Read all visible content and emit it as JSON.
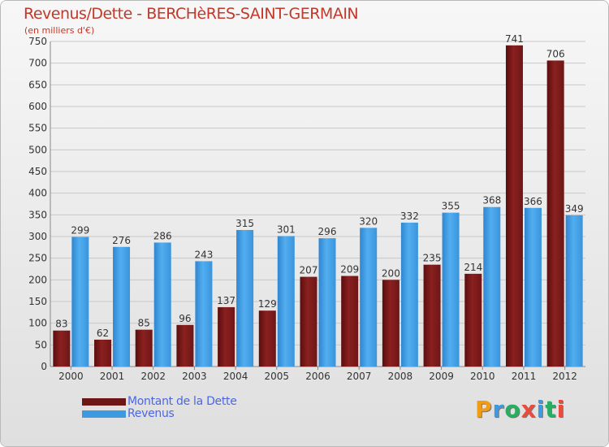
{
  "title": "Revenus/Dette - BERCHèRES-SAINT-GERMAIN",
  "subtitle": "(en milliers d'€)",
  "logo": {
    "letters": [
      "P",
      "r",
      "o",
      "x",
      "i",
      "t",
      "i"
    ],
    "colors": [
      "#f39c12",
      "#3e9ae0",
      "#27ae60",
      "#e74c3c",
      "#3e9ae0",
      "#27ae60",
      "#e74c3c"
    ]
  },
  "colors": {
    "dette": "#7a1c1c",
    "revenus": "#3e9ae0",
    "title": "#c0392b",
    "legend_text": "#4a66e8"
  },
  "chart_data": {
    "type": "bar",
    "title": "Revenus/Dette - BERCHèRES-SAINT-GERMAIN",
    "ylabel": "(en milliers d'€)",
    "xlabel": "",
    "ylim": [
      0,
      750
    ],
    "yticks": [
      0,
      50,
      100,
      150,
      200,
      250,
      300,
      350,
      400,
      450,
      500,
      550,
      600,
      650,
      700,
      750
    ],
    "grid": true,
    "legend_position": "bottom-left",
    "categories": [
      "2000",
      "2001",
      "2002",
      "2003",
      "2004",
      "2005",
      "2006",
      "2007",
      "2008",
      "2009",
      "2010",
      "2011",
      "2012"
    ],
    "series": [
      {
        "name": "Montant de la Dette",
        "values": [
          83,
          62,
          85,
          96,
          137,
          129,
          207,
          209,
          200,
          235,
          214,
          741,
          706
        ]
      },
      {
        "name": "Revenus",
        "values": [
          299,
          276,
          286,
          243,
          315,
          301,
          296,
          320,
          332,
          355,
          368,
          366,
          349
        ]
      }
    ]
  }
}
